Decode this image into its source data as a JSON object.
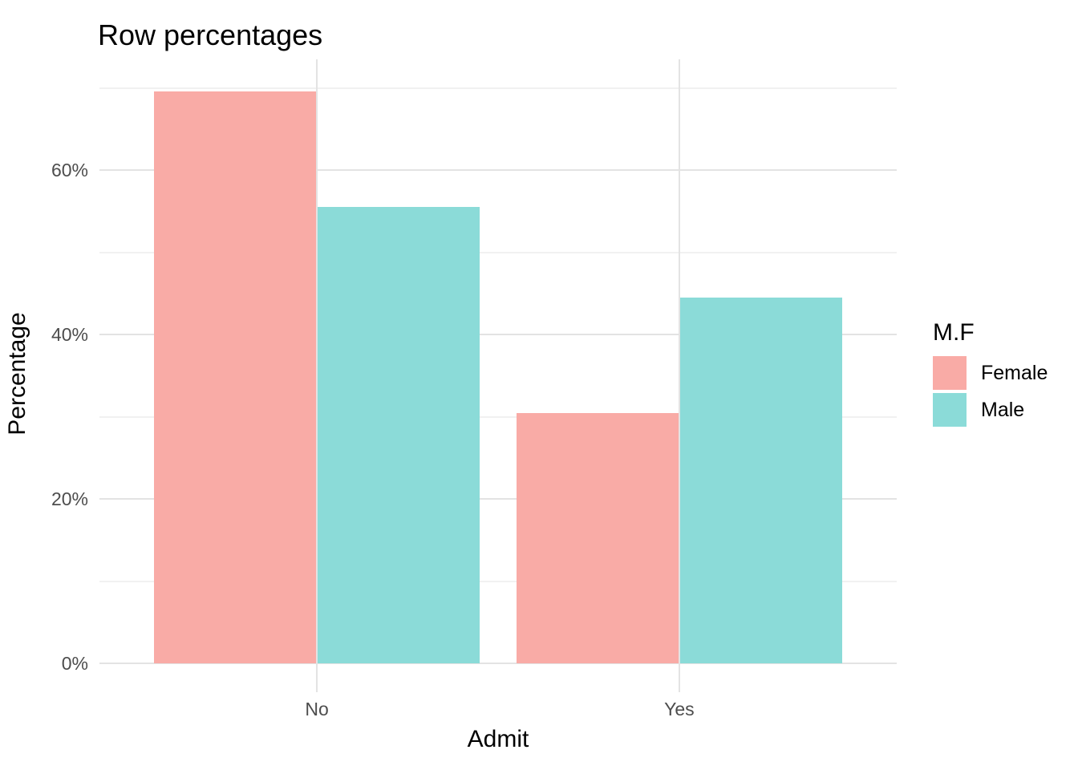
{
  "title": "Row percentages",
  "x_axis": {
    "title": "Admit",
    "tick_labels": [
      "No",
      "Yes"
    ]
  },
  "y_axis": {
    "title": "Percentage",
    "ticks": [
      {
        "label": "0%",
        "value": 0
      },
      {
        "label": "20%",
        "value": 20
      },
      {
        "label": "40%",
        "value": 40
      },
      {
        "label": "60%",
        "value": 60
      }
    ],
    "minor_values": [
      10,
      30,
      50,
      70
    ]
  },
  "legend": {
    "title": "M.F",
    "position": "right",
    "items": [
      {
        "label": "Female",
        "color": "#F9ABA6"
      },
      {
        "label": "Male",
        "color": "#8BDBD8"
      }
    ]
  },
  "chart_data": {
    "type": "bar",
    "grouping": "dodged",
    "title": "Row percentages",
    "xlabel": "Admit",
    "ylabel": "Percentage",
    "categories": [
      "No",
      "Yes"
    ],
    "series": [
      {
        "name": "Female",
        "color": "#F9ABA6",
        "values": [
          69.6,
          30.4
        ]
      },
      {
        "name": "Male",
        "color": "#8BDBD8",
        "values": [
          55.5,
          44.5
        ]
      }
    ],
    "unit": "percent",
    "ylim": [
      0,
      73.5
    ],
    "ytick_values": [
      0,
      20,
      40,
      60
    ],
    "grid": "horizontal major+minor, vertical major at category centers",
    "legend_title": "M.F",
    "legend_position": "right"
  },
  "colors": {
    "female_fill": "#F9ABA6",
    "male_fill": "#8BDBD8",
    "grid_major": "#E3E3E3",
    "grid_minor": "#F1F1F1",
    "axis_text": "#4D4D4D",
    "title_text": "#000000",
    "background": "#FFFFFF"
  }
}
